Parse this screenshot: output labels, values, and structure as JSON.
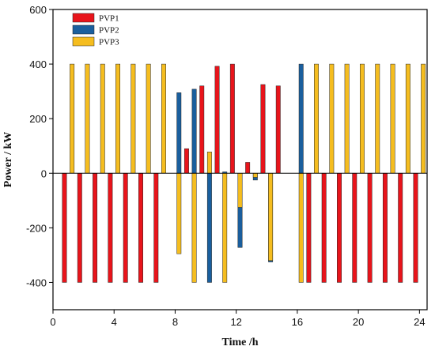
{
  "chart_data": {
    "type": "bar",
    "xlabel": "Time /h",
    "ylabel": "Power / kW",
    "xlim": [
      0,
      24.5
    ],
    "ylim": [
      -500,
      600
    ],
    "xticks": [
      0,
      4,
      8,
      12,
      16,
      20,
      24
    ],
    "yticks": [
      -400,
      -200,
      0,
      200,
      400,
      600
    ],
    "legend_position": "top-left",
    "grid": false,
    "series": [
      {
        "name": "PVP1",
        "color": "#e8141b",
        "x": [
          0.75,
          1.75,
          2.75,
          3.75,
          4.75,
          5.75,
          6.75,
          8.75,
          9.75,
          10.75,
          11.75,
          12.75,
          13.75,
          14.75,
          16.75,
          17.75,
          18.75,
          19.75,
          20.75,
          21.75,
          22.75,
          23.75
        ],
        "values": [
          -400,
          -400,
          -400,
          -400,
          -400,
          -400,
          -400,
          90,
          320,
          392,
          400,
          40,
          325,
          320,
          -400,
          -400,
          -400,
          -400,
          -400,
          -400,
          -400,
          -400
        ]
      },
      {
        "name": "PVP2",
        "color": "#1a5f9e",
        "x": [
          8.25,
          9.25,
          10.25,
          11.25,
          12.25,
          13.25,
          14.25,
          16.25
        ],
        "values": [
          295,
          308,
          -400,
          5,
          -272,
          -25,
          -325,
          400
        ]
      },
      {
        "name": "PVP3",
        "color": "#f5bd1f",
        "x": [
          1.25,
          2.25,
          3.25,
          4.25,
          5.25,
          6.25,
          7.25,
          8.25,
          9.25,
          10.25,
          11.25,
          12.25,
          13.25,
          14.25,
          16.25,
          17.25,
          18.25,
          19.25,
          20.25,
          21.25,
          22.25,
          23.25,
          24.25
        ],
        "values": [
          400,
          400,
          400,
          400,
          400,
          400,
          400,
          -295,
          -400,
          78,
          -400,
          -125,
          -15,
          -320,
          -400,
          400,
          400,
          400,
          400,
          400,
          400,
          400,
          400
        ]
      }
    ]
  }
}
